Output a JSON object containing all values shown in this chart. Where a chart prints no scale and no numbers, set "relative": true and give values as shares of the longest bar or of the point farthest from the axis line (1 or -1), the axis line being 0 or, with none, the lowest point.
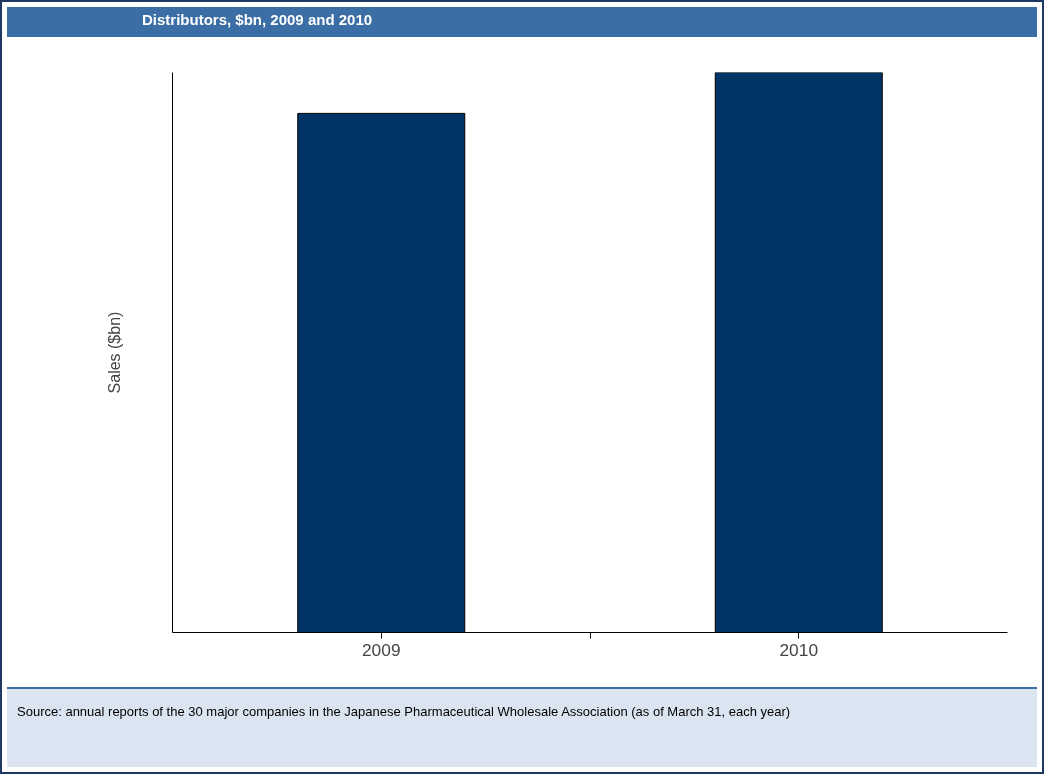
{
  "chart_data": {
    "type": "bar",
    "title": "Distributors, $bn, 2009 and 2010",
    "ylabel": "Sales ($bn)",
    "categories": [
      "2009",
      "2010"
    ],
    "values": [
      0.927,
      1
    ],
    "color": "#003366",
    "relative": true,
    "grid": false,
    "annotations": [
      "Source: annual reports of the 30 major companies in the Japanese Pharmaceutical Wholesale Association (as of March 31, each year)"
    ]
  }
}
